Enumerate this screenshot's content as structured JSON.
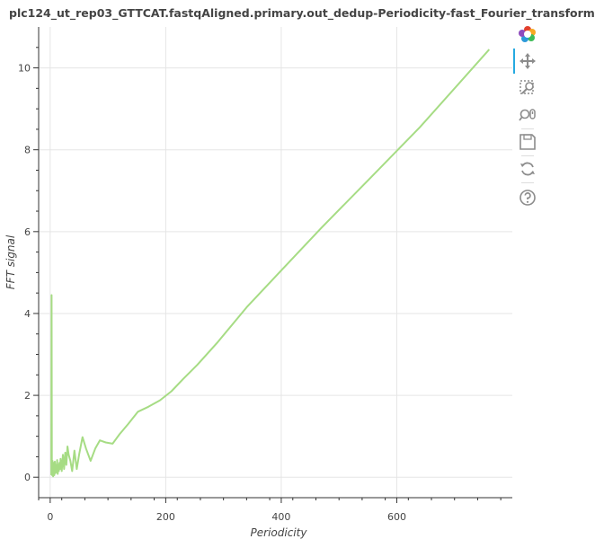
{
  "chart_data": {
    "type": "line",
    "title": "plc124_ut_rep03_GTTCAT.fastqAligned.primary.out_dedup-Periodicity-fast_Fourier_transform",
    "xlabel": "Periodicity",
    "ylabel": "FFT signal",
    "xlim": [
      -20,
      800
    ],
    "ylim": [
      -0.5,
      11.0
    ],
    "x_ticks": [
      0,
      200,
      400,
      600
    ],
    "y_ticks": [
      0,
      2,
      4,
      6,
      8,
      10
    ],
    "x_tick_labels": [
      "0",
      "200",
      "400",
      "600"
    ],
    "y_tick_labels": [
      "0",
      "2",
      "4",
      "6",
      "8",
      "10"
    ],
    "grid": true,
    "line_color": "#a6dc84",
    "series": [
      {
        "x": [
          2,
          2.4,
          2.8,
          3.2,
          4,
          5,
          6,
          7,
          8,
          9,
          10,
          11,
          12,
          13,
          14,
          15,
          16,
          17,
          18,
          20,
          22,
          24,
          26,
          28,
          30,
          32,
          35,
          38,
          42,
          46,
          50,
          56,
          62,
          70,
          78,
          86,
          96,
          108,
          120,
          135,
          152,
          170,
          190,
          210,
          230,
          255,
          290,
          340,
          400,
          470,
          550,
          640,
          760
        ],
        "y": [
          0.05,
          4.45,
          0.3,
          0.05,
          0.4,
          0.02,
          0.35,
          0.05,
          0.38,
          0.1,
          0.3,
          0.12,
          0.42,
          0.08,
          0.3,
          0.15,
          0.35,
          0.2,
          0.45,
          0.15,
          0.55,
          0.2,
          0.6,
          0.3,
          0.75,
          0.55,
          0.4,
          0.15,
          0.65,
          0.2,
          0.55,
          0.98,
          0.7,
          0.4,
          0.7,
          0.9,
          0.85,
          0.82,
          1.05,
          1.3,
          1.6,
          1.72,
          1.88,
          2.1,
          2.4,
          2.75,
          3.3,
          4.15,
          5.05,
          6.1,
          7.25,
          8.55,
          10.45
        ]
      }
    ]
  },
  "toolbar": {
    "buttons": [
      {
        "icon": "bokeh-logo-icon"
      },
      {
        "icon": "pan-icon"
      },
      {
        "icon": "box-zoom-icon"
      },
      {
        "icon": "wheel-zoom-icon"
      },
      {
        "icon": "save-icon"
      },
      {
        "icon": "reset-icon"
      },
      {
        "icon": "help-icon"
      }
    ],
    "active_color": "#26aae1"
  }
}
